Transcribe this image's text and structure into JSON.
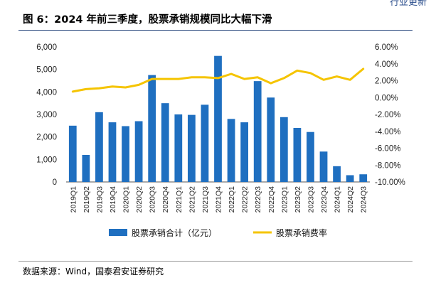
{
  "header": {
    "corner_text": "行业更新",
    "figure_title": "图 6：2024 年前三季度，股票承销规模同比大幅下滑"
  },
  "source": "数据来源：Wind，国泰君安证券研究",
  "colors": {
    "bar": "#1f6fc0",
    "line": "#f5c400"
  },
  "chart_data": {
    "type": "bar",
    "title": "图 6：2024 年前三季度，股票承销规模同比大幅下滑",
    "categories": [
      "2019Q1",
      "2019Q2",
      "2019Q3",
      "2019Q4",
      "2020Q1",
      "2020Q2",
      "2020Q3",
      "2020Q4",
      "2021Q1",
      "2021Q2",
      "2021Q3",
      "2021Q4",
      "2022Q1",
      "2022Q2",
      "2022Q3",
      "2022Q4",
      "2023Q1",
      "2023Q2",
      "2023Q3",
      "2023Q4",
      "2024Q1",
      "2024Q2",
      "2024Q3"
    ],
    "series": [
      {
        "name": "股票承销合计（亿元）",
        "type": "bar",
        "axis": "left",
        "values": [
          2500,
          1200,
          3100,
          2650,
          2480,
          2700,
          4750,
          3500,
          3000,
          2980,
          3430,
          5600,
          2800,
          2650,
          4480,
          3750,
          2880,
          2400,
          2220,
          1350,
          700,
          300,
          340
        ]
      },
      {
        "name": "股票承销费率",
        "type": "line",
        "axis": "right",
        "values": [
          0.7,
          1.0,
          1.1,
          1.3,
          1.2,
          1.5,
          2.2,
          2.2,
          2.2,
          2.4,
          2.4,
          2.3,
          2.8,
          2.2,
          2.4,
          1.7,
          2.3,
          3.2,
          2.9,
          2.1,
          2.5,
          2.1,
          3.4
        ]
      }
    ],
    "left_axis": {
      "ylim": [
        0,
        6000
      ],
      "ticks": [
        0,
        1000,
        2000,
        3000,
        4000,
        5000,
        6000
      ],
      "tick_labels": [
        "0",
        "1,000",
        "2,000",
        "3,000",
        "4,000",
        "5,000",
        "6,000"
      ]
    },
    "right_axis": {
      "ylim": [
        -10,
        6
      ],
      "ticks": [
        -10,
        -8,
        -6,
        -4,
        -2,
        0,
        2,
        4,
        6
      ],
      "tick_labels": [
        "-10.00%",
        "-8.00%",
        "-6.00%",
        "-4.00%",
        "-2.00%",
        "0.00%",
        "2.00%",
        "4.00%",
        "6.00%"
      ]
    },
    "legend_position": "bottom",
    "grid": false
  }
}
